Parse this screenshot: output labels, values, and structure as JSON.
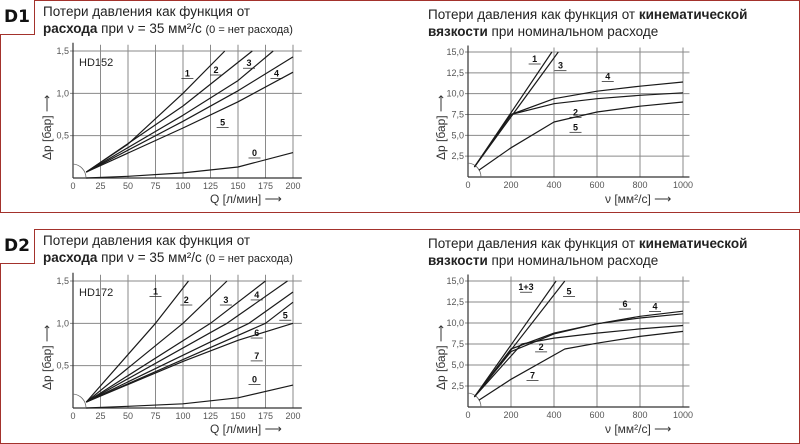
{
  "panels": [
    {
      "badge": "D1"
    },
    {
      "badge": "D2"
    }
  ],
  "titles": {
    "flow_line1": "Потери давления как функция от",
    "flow_bold": "расхода",
    "flow_rest": " при ν = 35 мм²/с ",
    "flow_note": "(0 = нет расхода)",
    "visc_line1_a": "Потери давления как функция от ",
    "visc_line1_bold": "кинематической",
    "visc_line2_bold": "вязкости",
    "visc_line2_rest": " при номинальном расходе"
  },
  "axes": {
    "dp_label": "Δp [бар] ⟶",
    "q_label": "Q [л/мин] ⟶",
    "nu_label": "ν [мм²/с] ⟶"
  },
  "chart_data": [
    {
      "type": "line",
      "panel": "D1",
      "model": "HD152",
      "title": "Потери давления как функция от расхода при ν = 35 мм²/с (0 = нет расхода)",
      "xlabel": "Q [л/мин]",
      "ylabel": "Δp [бар]",
      "xlim": [
        0,
        208
      ],
      "ylim": [
        0,
        1.55
      ],
      "xticks": [
        "0",
        "25",
        "50",
        "75",
        "100",
        "125",
        "150",
        "175",
        "200"
      ],
      "yticks": [
        "0,5",
        "1,0",
        "1,5"
      ],
      "series": [
        {
          "name": "1",
          "points": [
            [
              12,
              0.07
            ],
            [
              50,
              0.4
            ],
            [
              100,
              1.0
            ],
            [
              138,
              1.5
            ]
          ],
          "label_at": [
            104,
            1.2
          ]
        },
        {
          "name": "2",
          "points": [
            [
              12,
              0.07
            ],
            [
              100,
              0.85
            ],
            [
              163,
              1.5
            ]
          ],
          "label_at": [
            130,
            1.24
          ]
        },
        {
          "name": "3",
          "points": [
            [
              12,
              0.07
            ],
            [
              100,
              0.74
            ],
            [
              150,
              1.15
            ],
            [
              182,
              1.5
            ]
          ],
          "label_at": [
            160,
            1.32
          ]
        },
        {
          "name": "4",
          "points": [
            [
              12,
              0.07
            ],
            [
              100,
              0.67
            ],
            [
              150,
              1.03
            ],
            [
              200,
              1.43
            ]
          ],
          "label_at": [
            185,
            1.2
          ]
        },
        {
          "name": "5",
          "points": [
            [
              12,
              0.07
            ],
            [
              100,
              0.59
            ],
            [
              150,
              0.9
            ],
            [
              200,
              1.25
            ]
          ],
          "label_at": [
            136,
            0.62
          ]
        },
        {
          "name": "0",
          "points": [
            [
              12,
              0.0
            ],
            [
              50,
              0.02
            ],
            [
              100,
              0.06
            ],
            [
              150,
              0.13
            ],
            [
              200,
              0.3
            ]
          ],
          "label_at": [
            165,
            0.26
          ]
        }
      ]
    },
    {
      "type": "line",
      "panel": "D1",
      "title": "Потери давления как функция от кинематической вязкости при номинальном расходе",
      "xlabel": "ν [мм²/с]",
      "ylabel": "Δp [бар]",
      "xlim": [
        0,
        1030
      ],
      "ylim": [
        0,
        15.3
      ],
      "xticks": [
        "0",
        "200",
        "400",
        "600",
        "800",
        "1000"
      ],
      "yticks": [
        "2,5",
        "5,0",
        "7,5",
        "10,0",
        "12,5",
        "15,0"
      ],
      "series": [
        {
          "name": "1",
          "points": [
            [
              30,
              1.2
            ],
            [
              390,
              15
            ]
          ],
          "label_at": [
            310,
            13.8
          ]
        },
        {
          "name": "3",
          "points": [
            [
              30,
              1.2
            ],
            [
              420,
              15
            ]
          ],
          "label_at": [
            430,
            13.0
          ]
        },
        {
          "name": "4",
          "points": [
            [
              30,
              1.2
            ],
            [
              200,
              7.5
            ],
            [
              400,
              9.4
            ],
            [
              600,
              10.3
            ],
            [
              800,
              10.9
            ],
            [
              1000,
              11.4
            ]
          ],
          "label_at": [
            650,
            11.7
          ]
        },
        {
          "name": "2",
          "points": [
            [
              30,
              1.2
            ],
            [
              200,
              7.5
            ],
            [
              400,
              8.8
            ],
            [
              600,
              9.4
            ],
            [
              800,
              9.8
            ],
            [
              1000,
              10.1
            ]
          ],
          "label_at": [
            500,
            7.4
          ]
        },
        {
          "name": "5",
          "points": [
            [
              50,
              0.8
            ],
            [
              200,
              3.5
            ],
            [
              400,
              6.6
            ],
            [
              600,
              7.8
            ],
            [
              800,
              8.5
            ],
            [
              1000,
              9.0
            ]
          ],
          "label_at": [
            500,
            5.6
          ]
        }
      ]
    },
    {
      "type": "line",
      "panel": "D2",
      "model": "HD172",
      "title": "Потери давления как функция от расхода при ν = 35 мм²/с (0 = нет расхода)",
      "xlabel": "Q [л/мин]",
      "ylabel": "Δp [бар]",
      "xlim": [
        0,
        208
      ],
      "ylim": [
        0,
        1.55
      ],
      "xticks": [
        "0",
        "25",
        "50",
        "75",
        "100",
        "125",
        "150",
        "175",
        "200"
      ],
      "yticks": [
        "0,5",
        "1,0",
        "1,5"
      ],
      "series": [
        {
          "name": "1",
          "points": [
            [
              12,
              0.07
            ],
            [
              75,
              1.0
            ],
            [
              105,
              1.5
            ]
          ],
          "label_at": [
            75,
            1.34
          ]
        },
        {
          "name": "2",
          "points": [
            [
              12,
              0.07
            ],
            [
              100,
              1.0
            ],
            [
              140,
              1.5
            ]
          ],
          "label_at": [
            103,
            1.24
          ]
        },
        {
          "name": "3",
          "points": [
            [
              12,
              0.07
            ],
            [
              125,
              1.0
            ],
            [
              175,
              1.5
            ]
          ],
          "label_at": [
            139,
            1.24
          ]
        },
        {
          "name": "4",
          "points": [
            [
              12,
              0.07
            ],
            [
              140,
              1.0
            ],
            [
              195,
              1.5
            ]
          ],
          "label_at": [
            167,
            1.3
          ]
        },
        {
          "name": "5",
          "points": [
            [
              12,
              0.07
            ],
            [
              160,
              1.0
            ],
            [
              200,
              1.37
            ]
          ],
          "label_at": [
            193,
            1.06
          ]
        },
        {
          "name": "6",
          "points": [
            [
              12,
              0.07
            ],
            [
              175,
              1.0
            ],
            [
              200,
              1.25
            ]
          ],
          "label_at": [
            167,
            0.85
          ]
        },
        {
          "name": "7",
          "points": [
            [
              12,
              0.07
            ],
            [
              100,
              0.55
            ],
            [
              150,
              0.8
            ],
            [
              200,
              1.0
            ]
          ],
          "label_at": [
            167,
            0.58
          ]
        },
        {
          "name": "0",
          "points": [
            [
              12,
              0.0
            ],
            [
              50,
              0.02
            ],
            [
              100,
              0.05
            ],
            [
              150,
              0.12
            ],
            [
              200,
              0.27
            ]
          ],
          "label_at": [
            165,
            0.3
          ]
        }
      ]
    },
    {
      "type": "line",
      "panel": "D2",
      "title": "Потери давления как функция от кинематической вязкости при номинальном расходе",
      "xlabel": "ν [мм²/с]",
      "ylabel": "Δp [бар]",
      "xlim": [
        0,
        1030
      ],
      "ylim": [
        0,
        15.3
      ],
      "xticks": [
        "0",
        "200",
        "400",
        "600",
        "800",
        "1000"
      ],
      "yticks": [
        "2,5",
        "5,0",
        "7,5",
        "10,0",
        "12,5",
        "15,0"
      ],
      "series": [
        {
          "name": "1+3",
          "points": [
            [
              30,
              1.2
            ],
            [
              410,
              15
            ]
          ],
          "label_at": [
            270,
            13.9
          ]
        },
        {
          "name": "5",
          "points": [
            [
              30,
              1.2
            ],
            [
              450,
              15
            ]
          ],
          "label_at": [
            470,
            13.4
          ]
        },
        {
          "name": "4",
          "points": [
            [
              30,
              1.2
            ],
            [
              200,
              6.9
            ],
            [
              400,
              8.8
            ],
            [
              600,
              9.9
            ],
            [
              800,
              10.8
            ],
            [
              1000,
              11.4
            ]
          ],
          "label_at": [
            870,
            11.6
          ]
        },
        {
          "name": "6",
          "points": [
            [
              30,
              1.2
            ],
            [
              200,
              6.6
            ],
            [
              400,
              8.7
            ],
            [
              600,
              9.9
            ],
            [
              800,
              10.6
            ],
            [
              1000,
              11.1
            ]
          ],
          "label_at": [
            730,
            11.9
          ]
        },
        {
          "name": "2",
          "points": [
            [
              30,
              1.2
            ],
            [
              250,
              7.5
            ],
            [
              400,
              8.2
            ],
            [
              600,
              8.8
            ],
            [
              800,
              9.3
            ],
            [
              1000,
              9.7
            ]
          ],
          "label_at": [
            340,
            6.8
          ]
        },
        {
          "name": "7",
          "points": [
            [
              50,
              0.8
            ],
            [
              200,
              3.3
            ],
            [
              450,
              6.9
            ],
            [
              600,
              7.6
            ],
            [
              800,
              8.4
            ],
            [
              1000,
              9.0
            ]
          ],
          "label_at": [
            300,
            3.4
          ]
        }
      ]
    }
  ]
}
